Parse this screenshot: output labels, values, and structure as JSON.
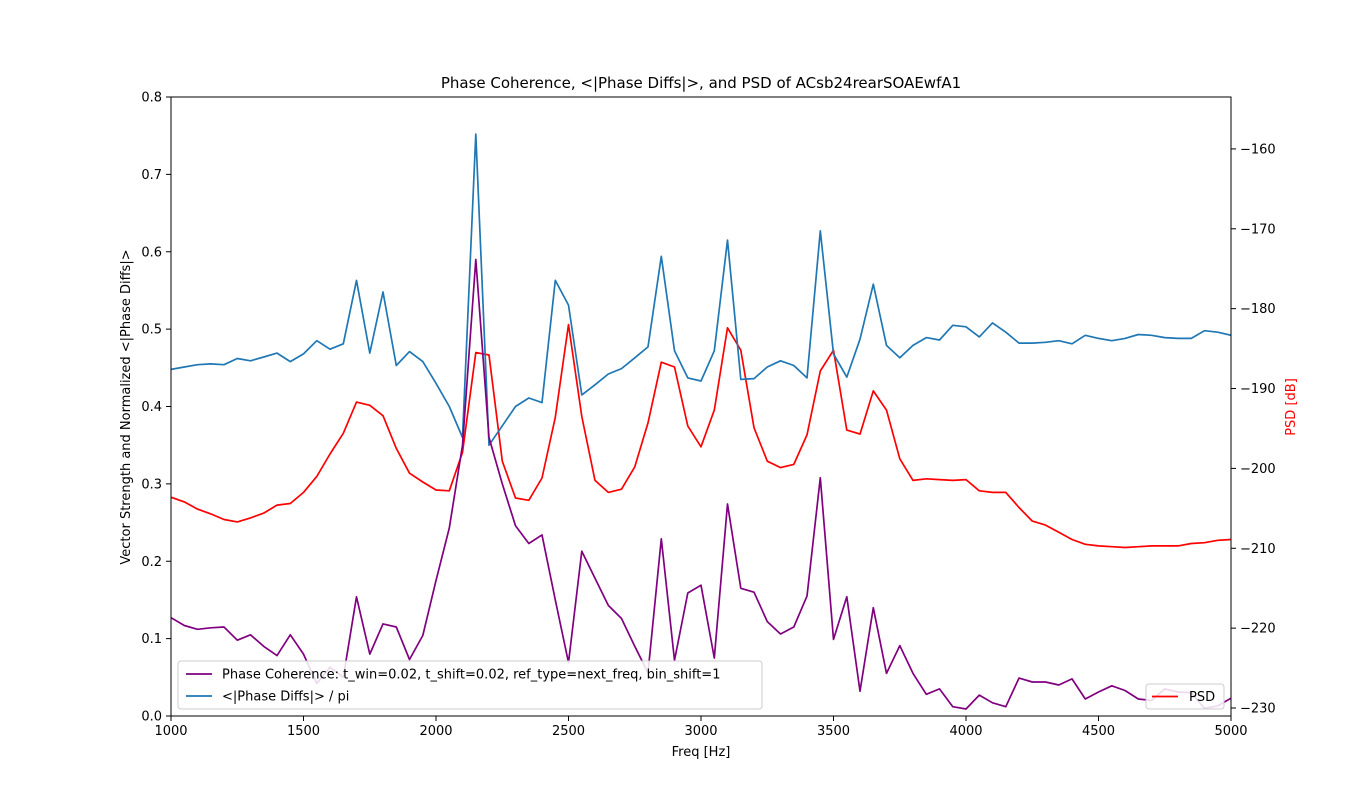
{
  "chart_data": {
    "type": "line",
    "title": "Phase Coherence, <|Phase Diffs|>, and PSD of ACsb24rearSOAEwfA1",
    "xlabel": "Freq [Hz]",
    "ylabel_left": "Vector Strength and Normalized <|Phase Diffs|>",
    "ylabel_right": "PSD [dB]",
    "xlim": [
      1000,
      5000
    ],
    "ylim_left": [
      0.0,
      0.8
    ],
    "ylim_right": [
      -231,
      -153.5
    ],
    "xticks": [
      1000,
      1500,
      2000,
      2500,
      3000,
      3500,
      4000,
      4500,
      5000
    ],
    "yticks_left": [
      "0.0",
      "0.1",
      "0.2",
      "0.3",
      "0.4",
      "0.5",
      "0.6",
      "0.7",
      "0.8"
    ],
    "yticks_right": [
      "−230",
      "−220",
      "−210",
      "−200",
      "−190",
      "−180",
      "−170",
      "−160"
    ],
    "grid": false,
    "colors": {
      "coherence": "#800080",
      "phase_diffs": "#1f77b4",
      "psd": "#ff0000",
      "psd_label": "#ff0000"
    },
    "legend_left": {
      "placement": "lower-left",
      "entries": [
        {
          "label": "Phase Coherence: t_win=0.02, t_shift=0.02, ref_type=next_freq, bin_shift=1",
          "color": "#800080"
        },
        {
          "label": "<|Phase Diffs|> / pi",
          "color": "#1f77b4"
        }
      ]
    },
    "legend_right": {
      "placement": "lower-right",
      "entries": [
        {
          "label": "PSD",
          "color": "#ff0000"
        }
      ]
    },
    "series": [
      {
        "name": "Phase Coherence: t_win=0.02, t_shift=0.02, ref_type=next_freq, bin_shift=1",
        "axis": "left",
        "color": "#800080",
        "x": [
          1000,
          1050,
          1100,
          1150,
          1200,
          1250,
          1300,
          1350,
          1400,
          1450,
          1500,
          1550,
          1600,
          1650,
          1700,
          1750,
          1800,
          1850,
          1900,
          1950,
          2000,
          2050,
          2100,
          2150,
          2200,
          2250,
          2300,
          2350,
          2400,
          2450,
          2500,
          2550,
          2600,
          2650,
          2700,
          2750,
          2800,
          2850,
          2900,
          2950,
          3000,
          3050,
          3100,
          3150,
          3200,
          3250,
          3300,
          3350,
          3400,
          3450,
          3500,
          3550,
          3600,
          3650,
          3700,
          3750,
          3800,
          3850,
          3900,
          3950,
          4000,
          4050,
          4100,
          4150,
          4200,
          4250,
          4300,
          4350,
          4400,
          4450,
          4500,
          4550,
          4600,
          4650,
          4700,
          4750,
          4800,
          4850,
          4900,
          4950,
          5000
        ],
        "y": [
          0.127,
          0.117,
          0.112,
          0.114,
          0.115,
          0.098,
          0.105,
          0.09,
          0.078,
          0.105,
          0.08,
          0.042,
          0.063,
          0.05,
          0.154,
          0.08,
          0.119,
          0.115,
          0.073,
          0.104,
          0.175,
          0.243,
          0.35,
          0.59,
          0.36,
          0.3,
          0.246,
          0.223,
          0.234,
          0.15,
          0.069,
          0.213,
          0.178,
          0.143,
          0.126,
          0.09,
          0.056,
          0.229,
          0.072,
          0.159,
          0.169,
          0.075,
          0.274,
          0.165,
          0.16,
          0.122,
          0.106,
          0.115,
          0.155,
          0.308,
          0.099,
          0.154,
          0.032,
          0.14,
          0.055,
          0.091,
          0.055,
          0.028,
          0.035,
          0.012,
          0.009,
          0.027,
          0.017,
          0.012,
          0.049,
          0.044,
          0.044,
          0.04,
          0.048,
          0.022,
          0.031,
          0.039,
          0.033,
          0.022,
          0.02,
          0.035,
          0.031,
          0.03,
          0.01,
          0.013,
          0.023
        ]
      },
      {
        "name": "<|Phase Diffs|> / pi",
        "axis": "left",
        "color": "#1f77b4",
        "x": [
          1000,
          1050,
          1100,
          1150,
          1200,
          1250,
          1300,
          1350,
          1400,
          1450,
          1500,
          1550,
          1600,
          1650,
          1700,
          1750,
          1800,
          1850,
          1900,
          1950,
          2000,
          2050,
          2100,
          2150,
          2200,
          2250,
          2300,
          2350,
          2400,
          2450,
          2500,
          2550,
          2600,
          2650,
          2700,
          2750,
          2800,
          2850,
          2900,
          2950,
          3000,
          3050,
          3100,
          3150,
          3200,
          3250,
          3300,
          3350,
          3400,
          3450,
          3500,
          3550,
          3600,
          3650,
          3700,
          3750,
          3800,
          3850,
          3900,
          3950,
          4000,
          4050,
          4100,
          4150,
          4200,
          4250,
          4300,
          4350,
          4400,
          4450,
          4500,
          4550,
          4600,
          4650,
          4700,
          4750,
          4800,
          4850,
          4900,
          4950,
          5000
        ],
        "y": [
          0.448,
          0.451,
          0.454,
          0.455,
          0.454,
          0.462,
          0.459,
          0.464,
          0.469,
          0.458,
          0.468,
          0.485,
          0.474,
          0.481,
          0.563,
          0.469,
          0.548,
          0.453,
          0.471,
          0.458,
          0.43,
          0.4,
          0.36,
          0.752,
          0.35,
          0.375,
          0.4,
          0.411,
          0.405,
          0.563,
          0.531,
          0.415,
          0.428,
          0.442,
          0.449,
          0.463,
          0.477,
          0.594,
          0.472,
          0.437,
          0.433,
          0.472,
          0.615,
          0.435,
          0.436,
          0.451,
          0.459,
          0.453,
          0.437,
          0.627,
          0.468,
          0.438,
          0.487,
          0.558,
          0.479,
          0.463,
          0.479,
          0.489,
          0.486,
          0.505,
          0.503,
          0.49,
          0.508,
          0.496,
          0.482,
          0.482,
          0.483,
          0.485,
          0.481,
          0.492,
          0.488,
          0.485,
          0.488,
          0.493,
          0.492,
          0.489,
          0.488,
          0.488,
          0.498,
          0.496,
          0.492
        ]
      },
      {
        "name": "PSD",
        "axis": "right",
        "color": "#ff0000",
        "x": [
          1000,
          1050,
          1100,
          1150,
          1200,
          1250,
          1300,
          1350,
          1400,
          1450,
          1500,
          1550,
          1600,
          1650,
          1700,
          1750,
          1800,
          1850,
          1900,
          1950,
          2000,
          2050,
          2100,
          2150,
          2200,
          2250,
          2300,
          2350,
          2400,
          2450,
          2500,
          2550,
          2600,
          2650,
          2700,
          2750,
          2800,
          2850,
          2900,
          2950,
          3000,
          3050,
          3100,
          3150,
          3200,
          3250,
          3300,
          3350,
          3400,
          3450,
          3500,
          3550,
          3600,
          3650,
          3700,
          3750,
          3800,
          3850,
          3900,
          3950,
          4000,
          4050,
          4100,
          4150,
          4200,
          4250,
          4300,
          4350,
          4400,
          4450,
          4500,
          4550,
          4600,
          4650,
          4700,
          4750,
          4800,
          4850,
          4900,
          4950,
          5000
        ],
        "y": [
          -203.6,
          -204.2,
          -205.1,
          -205.7,
          -206.4,
          -206.7,
          -206.2,
          -205.6,
          -204.6,
          -204.4,
          -203.0,
          -201.0,
          -198.2,
          -195.6,
          -191.7,
          -192.1,
          -193.4,
          -197.5,
          -200.6,
          -201.7,
          -202.7,
          -202.8,
          -198.0,
          -185.5,
          -185.8,
          -199.1,
          -203.7,
          -204.0,
          -201.2,
          -193.6,
          -182.0,
          -193.5,
          -201.5,
          -203.0,
          -202.6,
          -199.8,
          -194.3,
          -186.7,
          -187.3,
          -194.7,
          -197.3,
          -192.7,
          -182.4,
          -185.2,
          -194.9,
          -199.1,
          -199.9,
          -199.5,
          -195.8,
          -187.8,
          -185.2,
          -195.2,
          -195.7,
          -190.3,
          -192.7,
          -198.8,
          -201.5,
          -201.3,
          -201.4,
          -201.5,
          -201.4,
          -202.8,
          -203.0,
          -203.0,
          -204.9,
          -206.6,
          -207.1,
          -208.0,
          -208.9,
          -209.5,
          -209.7,
          -209.8,
          -209.9,
          -209.8,
          -209.7,
          -209.7,
          -209.7,
          -209.4,
          -209.3,
          -209.0,
          -208.9
        ]
      }
    ]
  }
}
